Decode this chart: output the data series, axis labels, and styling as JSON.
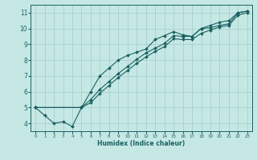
{
  "xlabel": "Humidex (Indice chaleur)",
  "ylabel": "",
  "bg_color": "#c5e8e5",
  "grid_color": "#a8d0cc",
  "line_color": "#1a6060",
  "xlim": [
    -0.5,
    23.5
  ],
  "ylim": [
    3.5,
    11.5
  ],
  "xticks": [
    0,
    1,
    2,
    3,
    4,
    5,
    6,
    7,
    8,
    9,
    10,
    11,
    12,
    13,
    14,
    15,
    16,
    17,
    18,
    19,
    20,
    21,
    22,
    23
  ],
  "yticks": [
    4,
    5,
    6,
    7,
    8,
    9,
    10,
    11
  ],
  "line1_x": [
    0,
    1,
    2,
    3,
    4,
    5,
    6,
    7,
    8,
    9,
    10,
    11,
    12,
    13,
    14,
    15,
    16,
    17,
    18,
    19,
    20,
    21,
    22,
    23
  ],
  "line1_y": [
    5.0,
    4.5,
    4.0,
    4.1,
    3.8,
    5.0,
    6.0,
    7.0,
    7.5,
    8.0,
    8.3,
    8.5,
    8.7,
    9.3,
    9.55,
    9.8,
    9.6,
    9.5,
    10.0,
    10.05,
    10.2,
    10.3,
    11.0,
    11.1
  ],
  "line2_x": [
    0,
    5,
    6,
    7,
    8,
    9,
    10,
    11,
    12,
    13,
    14,
    15,
    16,
    17,
    18,
    19,
    20,
    21,
    22,
    23
  ],
  "line2_y": [
    5.0,
    5.0,
    5.3,
    5.9,
    6.4,
    6.9,
    7.35,
    7.8,
    8.2,
    8.55,
    8.85,
    9.35,
    9.3,
    9.3,
    9.7,
    9.9,
    10.1,
    10.2,
    10.85,
    11.0
  ],
  "line3_x": [
    0,
    5,
    6,
    7,
    8,
    9,
    10,
    11,
    12,
    13,
    14,
    15,
    16,
    17,
    18,
    19,
    20,
    21,
    22,
    23
  ],
  "line3_y": [
    5.0,
    5.0,
    5.5,
    6.15,
    6.65,
    7.15,
    7.6,
    8.05,
    8.45,
    8.75,
    9.05,
    9.55,
    9.5,
    9.5,
    10.0,
    10.2,
    10.4,
    10.5,
    11.0,
    11.1
  ]
}
